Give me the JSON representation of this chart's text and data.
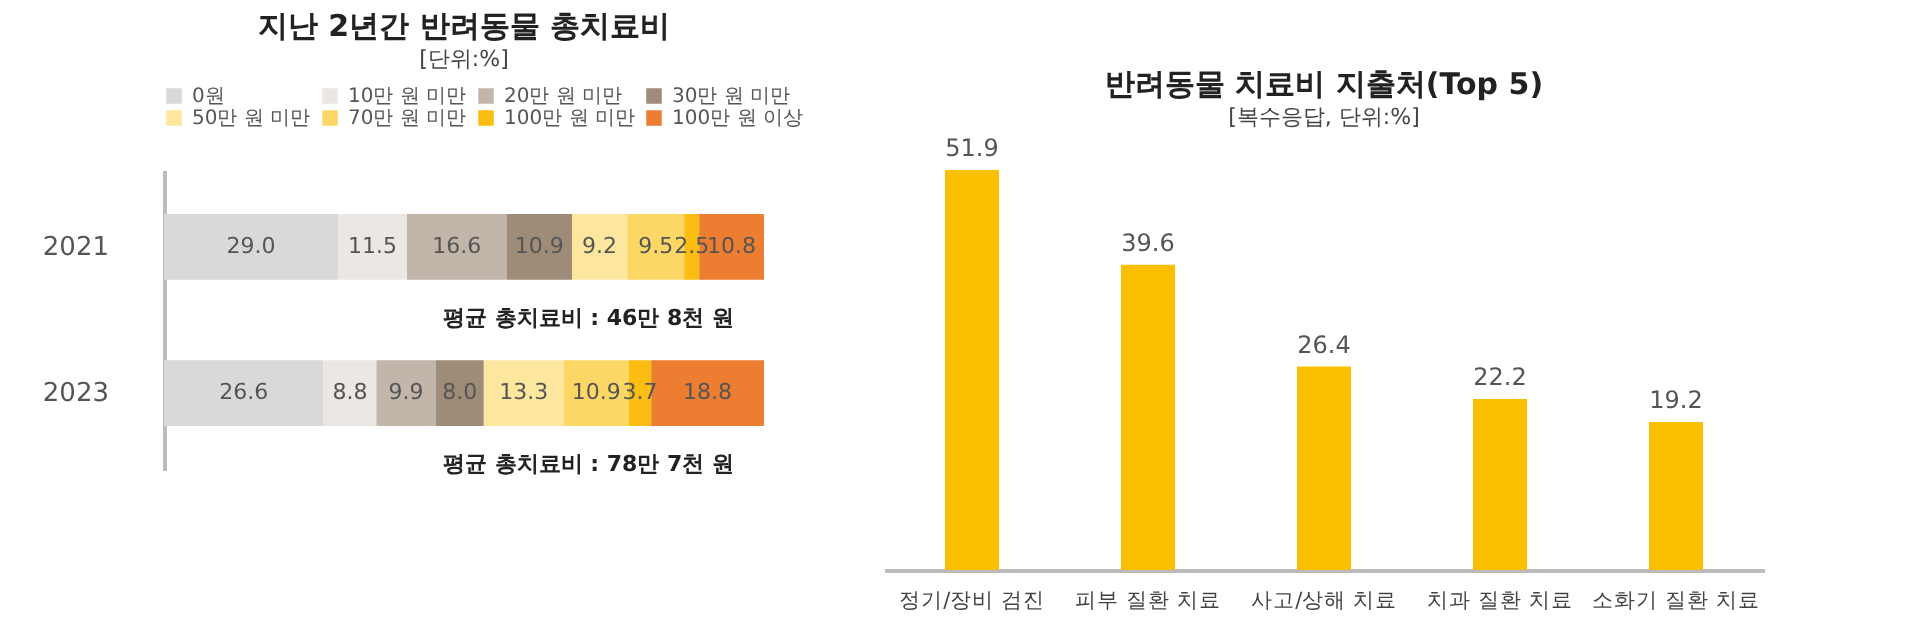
{
  "chart_data": [
    {
      "type": "bar",
      "orientation": "horizontal",
      "stacked": true,
      "title": "지난 2년간 반려동물 총치료비",
      "subtitle": "[단위:%]",
      "categories": [
        "2021",
        "2023"
      ],
      "legend": "top",
      "series": [
        {
          "name": "0원",
          "color": "#d9d9d9",
          "values": [
            29.0,
            26.6
          ],
          "value_labels": [
            "29.0",
            "26.6"
          ]
        },
        {
          "name": "10만 원 미만",
          "color": "#ebe7e3",
          "values": [
            11.5,
            8.8
          ],
          "value_labels": [
            "11.5",
            "8.8"
          ]
        },
        {
          "name": "20만 원 미만",
          "color": "#c2b5aa",
          "values": [
            16.6,
            9.9
          ],
          "value_labels": [
            "16.6",
            "9.9"
          ]
        },
        {
          "name": "30만 원 미만",
          "color": "#9e8b78",
          "values": [
            10.9,
            8.0
          ],
          "value_labels": [
            "10.9",
            "8.0"
          ]
        },
        {
          "name": "50만 원 미만",
          "color": "#fde79e",
          "values": [
            9.2,
            13.3
          ],
          "value_labels": [
            "9.2",
            "13.3"
          ]
        },
        {
          "name": "70만 원 미만",
          "color": "#fdd766",
          "values": [
            9.5,
            10.9
          ],
          "value_labels": [
            "9.5",
            "10.9"
          ]
        },
        {
          "name": "100만 원 미만",
          "color": "#fbbd10",
          "values": [
            2.5,
            3.7
          ],
          "value_labels": [
            "2.5",
            "3.7"
          ]
        },
        {
          "name": "100만 원 이상",
          "color": "#ed7d31",
          "values": [
            10.8,
            18.8
          ],
          "value_labels": [
            "10.8",
            "18.8"
          ]
        }
      ],
      "annotations": [
        "평균 총치료비 : 46만 8천 원",
        "평균 총치료비 : 78만 7천 원"
      ]
    },
    {
      "type": "bar",
      "title": "반려동물 치료비 지출처(Top 5)",
      "subtitle": "[복수응답, 단위:%]",
      "categories": [
        "정기/장비 검진",
        "피부 질환 치료",
        "사고/상해 치료",
        "치과 질환 치료",
        "소화기 질환 치료"
      ],
      "values": [
        51.9,
        39.6,
        26.4,
        22.2,
        19.2
      ],
      "color": "#fcbf00",
      "data_labels": true
    }
  ]
}
